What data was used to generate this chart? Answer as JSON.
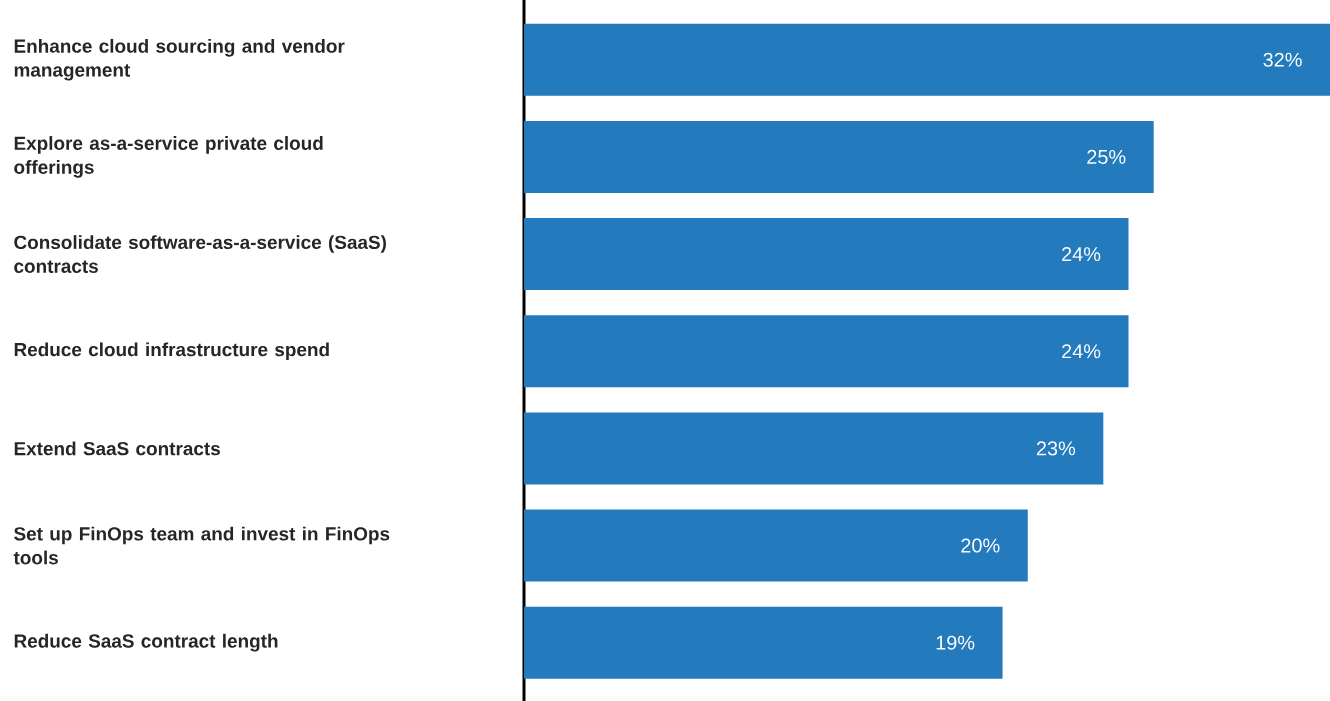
{
  "chart_data": {
    "type": "bar",
    "orientation": "horizontal",
    "categories": [
      "Enhance cloud sourcing and vendor management",
      "Explore as-a-service private cloud offerings",
      "Consolidate software-as-a-service (SaaS) contracts",
      "Reduce cloud infrastructure spend",
      "Extend SaaS contracts",
      "Set up FinOps team and invest in FinOps tools",
      "Reduce SaaS contract length"
    ],
    "values": [
      32,
      25,
      24,
      24,
      23,
      20,
      19
    ],
    "value_labels": [
      "32%",
      "25%",
      "24%",
      "24%",
      "23%",
      "20%",
      "19%"
    ],
    "color": "#237abd"
  }
}
